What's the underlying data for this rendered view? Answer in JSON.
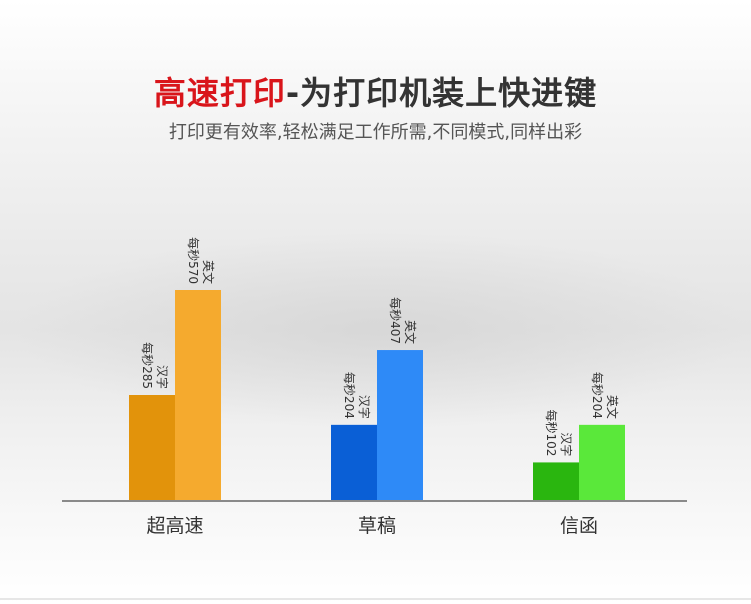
{
  "title": {
    "accent": "高速打印",
    "rest": "-为打印机装上快进键"
  },
  "subtitle": "打印更有效率,轻松满足工作所需,不同模式,同样出彩",
  "colors": {
    "group1_left": "#e2930b",
    "group1_right": "#f5aa2e",
    "group2_left": "#0a5fd6",
    "group2_right": "#2e8af7",
    "group3_left": "#2ab60f",
    "group3_right": "#5ae83a",
    "axis": "#8a8a8a"
  },
  "chart_data": {
    "type": "bar",
    "categories": [
      "超高速",
      "草稿",
      "信函"
    ],
    "series": [
      {
        "name": "汉字",
        "values": [
          285,
          204,
          102
        ],
        "labels": [
          "每秒285",
          "每秒204",
          "每秒102"
        ]
      },
      {
        "name": "英文",
        "values": [
          570,
          407,
          204
        ],
        "labels": [
          "每秒570",
          "每秒407",
          "每秒204"
        ]
      }
    ],
    "ylim": [
      0,
      600
    ]
  }
}
